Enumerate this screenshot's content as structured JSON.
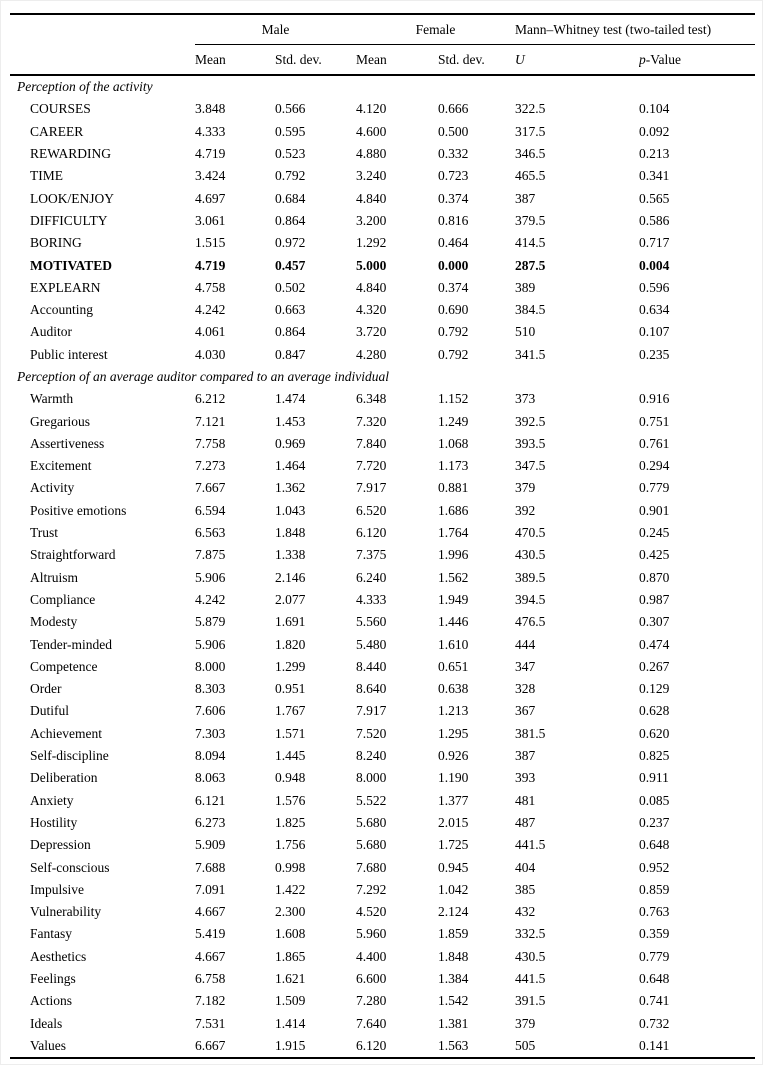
{
  "table": {
    "group_headers": {
      "male": "Male",
      "female": "Female",
      "mann_whitney": "Mann–Whitney test (two-tailed test)"
    },
    "col_headers": {
      "mean_male": "Mean",
      "std_male": "Std. dev.",
      "mean_female": "Mean",
      "std_female": "Std. dev.",
      "u": "U",
      "p_italic": "p",
      "p_rest": "-Value"
    },
    "sections": [
      {
        "title": "Perception of the activity",
        "rows": [
          {
            "label": "COURSES",
            "male_mean": "3.848",
            "male_sd": "0.566",
            "female_mean": "4.120",
            "female_sd": "0.666",
            "u": "322.5",
            "p": "0.104",
            "bold": false
          },
          {
            "label": "CAREER",
            "male_mean": "4.333",
            "male_sd": "0.595",
            "female_mean": "4.600",
            "female_sd": "0.500",
            "u": "317.5",
            "p": "0.092",
            "bold": false
          },
          {
            "label": "REWARDING",
            "male_mean": "4.719",
            "male_sd": "0.523",
            "female_mean": "4.880",
            "female_sd": "0.332",
            "u": "346.5",
            "p": "0.213",
            "bold": false
          },
          {
            "label": "TIME",
            "male_mean": "3.424",
            "male_sd": "0.792",
            "female_mean": "3.240",
            "female_sd": "0.723",
            "u": "465.5",
            "p": "0.341",
            "bold": false
          },
          {
            "label": "LOOK/ENJOY",
            "male_mean": "4.697",
            "male_sd": "0.684",
            "female_mean": "4.840",
            "female_sd": "0.374",
            "u": "387",
            "p": "0.565",
            "bold": false
          },
          {
            "label": "DIFFICULTY",
            "male_mean": "3.061",
            "male_sd": "0.864",
            "female_mean": "3.200",
            "female_sd": "0.816",
            "u": "379.5",
            "p": "0.586",
            "bold": false
          },
          {
            "label": "BORING",
            "male_mean": "1.515",
            "male_sd": "0.972",
            "female_mean": "1.292",
            "female_sd": "0.464",
            "u": "414.5",
            "p": "0.717",
            "bold": false
          },
          {
            "label": "MOTIVATED",
            "male_mean": "4.719",
            "male_sd": "0.457",
            "female_mean": "5.000",
            "female_sd": "0.000",
            "u": "287.5",
            "p": "0.004",
            "bold": true
          },
          {
            "label": "EXPLEARN",
            "male_mean": "4.758",
            "male_sd": "0.502",
            "female_mean": "4.840",
            "female_sd": "0.374",
            "u": "389",
            "p": "0.596",
            "bold": false
          },
          {
            "label": "Accounting",
            "male_mean": "4.242",
            "male_sd": "0.663",
            "female_mean": "4.320",
            "female_sd": "0.690",
            "u": "384.5",
            "p": "0.634",
            "bold": false
          },
          {
            "label": "Auditor",
            "male_mean": "4.061",
            "male_sd": "0.864",
            "female_mean": "3.720",
            "female_sd": "0.792",
            "u": "510",
            "p": "0.107",
            "bold": false
          },
          {
            "label": "Public interest",
            "male_mean": "4.030",
            "male_sd": "0.847",
            "female_mean": "4.280",
            "female_sd": "0.792",
            "u": "341.5",
            "p": "0.235",
            "bold": false
          }
        ]
      },
      {
        "title": "Perception of an average auditor compared to an average individual",
        "rows": [
          {
            "label": "Warmth",
            "male_mean": "6.212",
            "male_sd": "1.474",
            "female_mean": "6.348",
            "female_sd": "1.152",
            "u": "373",
            "p": "0.916",
            "bold": false
          },
          {
            "label": "Gregarious",
            "male_mean": "7.121",
            "male_sd": "1.453",
            "female_mean": "7.320",
            "female_sd": "1.249",
            "u": "392.5",
            "p": "0.751",
            "bold": false
          },
          {
            "label": "Assertiveness",
            "male_mean": "7.758",
            "male_sd": "0.969",
            "female_mean": "7.840",
            "female_sd": "1.068",
            "u": "393.5",
            "p": "0.761",
            "bold": false
          },
          {
            "label": "Excitement",
            "male_mean": "7.273",
            "male_sd": "1.464",
            "female_mean": "7.720",
            "female_sd": "1.173",
            "u": "347.5",
            "p": "0.294",
            "bold": false
          },
          {
            "label": "Activity",
            "male_mean": "7.667",
            "male_sd": "1.362",
            "female_mean": "7.917",
            "female_sd": "0.881",
            "u": "379",
            "p": "0.779",
            "bold": false
          },
          {
            "label": "Positive emotions",
            "male_mean": "6.594",
            "male_sd": "1.043",
            "female_mean": "6.520",
            "female_sd": "1.686",
            "u": "392",
            "p": "0.901",
            "bold": false
          },
          {
            "label": "Trust",
            "male_mean": "6.563",
            "male_sd": "1.848",
            "female_mean": "6.120",
            "female_sd": "1.764",
            "u": "470.5",
            "p": "0.245",
            "bold": false
          },
          {
            "label": "Straightforward",
            "male_mean": "7.875",
            "male_sd": "1.338",
            "female_mean": "7.375",
            "female_sd": "1.996",
            "u": "430.5",
            "p": "0.425",
            "bold": false
          },
          {
            "label": "Altruism",
            "male_mean": "5.906",
            "male_sd": "2.146",
            "female_mean": "6.240",
            "female_sd": "1.562",
            "u": "389.5",
            "p": "0.870",
            "bold": false
          },
          {
            "label": "Compliance",
            "male_mean": "4.242",
            "male_sd": "2.077",
            "female_mean": "4.333",
            "female_sd": "1.949",
            "u": "394.5",
            "p": "0.987",
            "bold": false
          },
          {
            "label": "Modesty",
            "male_mean": "5.879",
            "male_sd": "1.691",
            "female_mean": "5.560",
            "female_sd": "1.446",
            "u": "476.5",
            "p": "0.307",
            "bold": false
          },
          {
            "label": "Tender-minded",
            "male_mean": "5.906",
            "male_sd": "1.820",
            "female_mean": "5.480",
            "female_sd": "1.610",
            "u": "444",
            "p": "0.474",
            "bold": false
          },
          {
            "label": "Competence",
            "male_mean": "8.000",
            "male_sd": "1.299",
            "female_mean": "8.440",
            "female_sd": "0.651",
            "u": "347",
            "p": "0.267",
            "bold": false
          },
          {
            "label": "Order",
            "male_mean": "8.303",
            "male_sd": "0.951",
            "female_mean": "8.640",
            "female_sd": "0.638",
            "u": "328",
            "p": "0.129",
            "bold": false
          },
          {
            "label": "Dutiful",
            "male_mean": "7.606",
            "male_sd": "1.767",
            "female_mean": "7.917",
            "female_sd": "1.213",
            "u": "367",
            "p": "0.628",
            "bold": false
          },
          {
            "label": "Achievement",
            "male_mean": "7.303",
            "male_sd": "1.571",
            "female_mean": "7.520",
            "female_sd": "1.295",
            "u": "381.5",
            "p": "0.620",
            "bold": false
          },
          {
            "label": "Self-discipline",
            "male_mean": "8.094",
            "male_sd": "1.445",
            "female_mean": "8.240",
            "female_sd": "0.926",
            "u": "387",
            "p": "0.825",
            "bold": false
          },
          {
            "label": "Deliberation",
            "male_mean": "8.063",
            "male_sd": "0.948",
            "female_mean": "8.000",
            "female_sd": "1.190",
            "u": "393",
            "p": "0.911",
            "bold": false
          },
          {
            "label": "Anxiety",
            "male_mean": "6.121",
            "male_sd": "1.576",
            "female_mean": "5.522",
            "female_sd": "1.377",
            "u": "481",
            "p": "0.085",
            "bold": false
          },
          {
            "label": "Hostility",
            "male_mean": "6.273",
            "male_sd": "1.825",
            "female_mean": "5.680",
            "female_sd": "2.015",
            "u": "487",
            "p": "0.237",
            "bold": false
          },
          {
            "label": "Depression",
            "male_mean": "5.909",
            "male_sd": "1.756",
            "female_mean": "5.680",
            "female_sd": "1.725",
            "u": "441.5",
            "p": "0.648",
            "bold": false
          },
          {
            "label": "Self-conscious",
            "male_mean": "7.688",
            "male_sd": "0.998",
            "female_mean": "7.680",
            "female_sd": "0.945",
            "u": "404",
            "p": "0.952",
            "bold": false
          },
          {
            "label": "Impulsive",
            "male_mean": "7.091",
            "male_sd": "1.422",
            "female_mean": "7.292",
            "female_sd": "1.042",
            "u": "385",
            "p": "0.859",
            "bold": false
          },
          {
            "label": "Vulnerability",
            "male_mean": "4.667",
            "male_sd": "2.300",
            "female_mean": "4.520",
            "female_sd": "2.124",
            "u": "432",
            "p": "0.763",
            "bold": false
          },
          {
            "label": "Fantasy",
            "male_mean": "5.419",
            "male_sd": "1.608",
            "female_mean": "5.960",
            "female_sd": "1.859",
            "u": "332.5",
            "p": "0.359",
            "bold": false
          },
          {
            "label": "Aesthetics",
            "male_mean": "4.667",
            "male_sd": "1.865",
            "female_mean": "4.400",
            "female_sd": "1.848",
            "u": "430.5",
            "p": "0.779",
            "bold": false
          },
          {
            "label": "Feelings",
            "male_mean": "6.758",
            "male_sd": "1.621",
            "female_mean": "6.600",
            "female_sd": "1.384",
            "u": "441.5",
            "p": "0.648",
            "bold": false
          },
          {
            "label": "Actions",
            "male_mean": "7.182",
            "male_sd": "1.509",
            "female_mean": "7.280",
            "female_sd": "1.542",
            "u": "391.5",
            "p": "0.741",
            "bold": false
          },
          {
            "label": "Ideals",
            "male_mean": "7.531",
            "male_sd": "1.414",
            "female_mean": "7.640",
            "female_sd": "1.381",
            "u": "379",
            "p": "0.732",
            "bold": false
          },
          {
            "label": "Values",
            "male_mean": "6.667",
            "male_sd": "1.915",
            "female_mean": "6.120",
            "female_sd": "1.563",
            "u": "505",
            "p": "0.141",
            "bold": false
          }
        ]
      }
    ]
  }
}
